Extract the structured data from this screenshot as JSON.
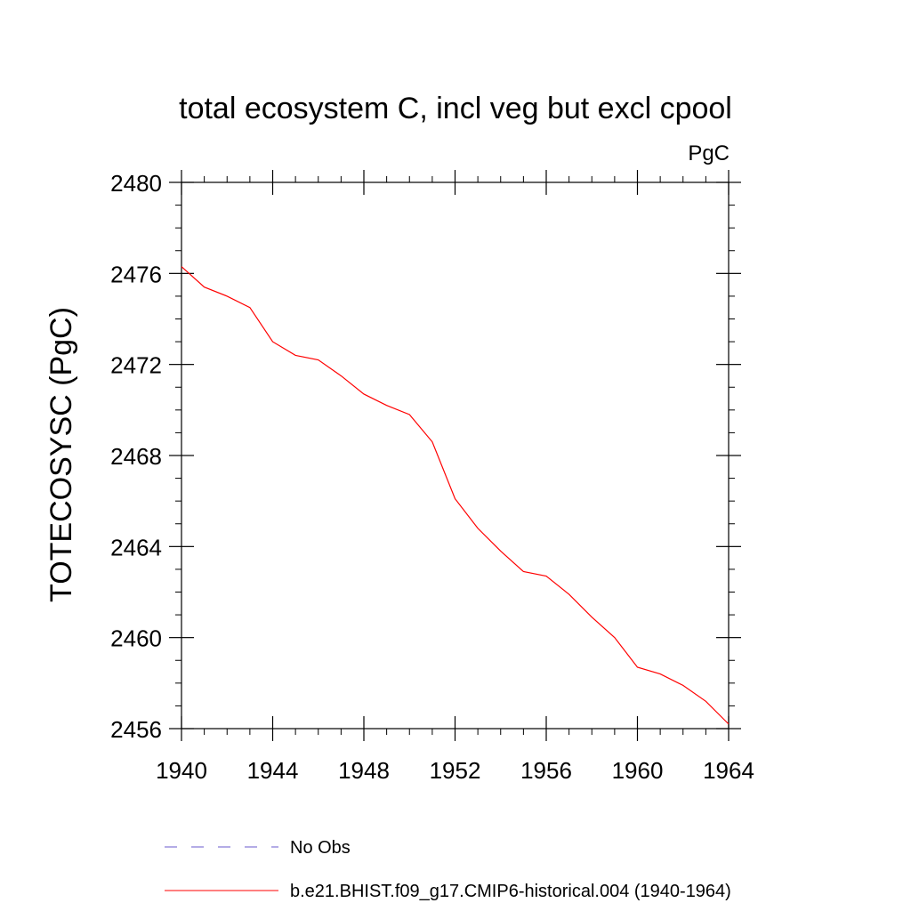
{
  "chart_data": {
    "type": "line",
    "title": "total ecosystem C, incl veg but excl cpool",
    "units_label": "PgC",
    "ylabel": "TOTECOSYSC  (PgC)",
    "xlabel": "",
    "xlim": [
      1940,
      1964
    ],
    "ylim": [
      2456,
      2480
    ],
    "x_ticks": [
      1940,
      1944,
      1948,
      1952,
      1956,
      1960,
      1964
    ],
    "y_ticks": [
      2456,
      2460,
      2464,
      2468,
      2472,
      2476,
      2480
    ],
    "x_tick_labels": [
      "1940",
      "1944",
      "1948",
      "1952",
      "1956",
      "1960",
      "1964"
    ],
    "y_tick_labels": [
      "2456",
      "2460",
      "2464",
      "2468",
      "2472",
      "2476",
      "2480"
    ],
    "grid": false,
    "legend_position": "bottom",
    "series": [
      {
        "name": "b.e21.BHIST.f09_g17.CMIP6-historical.004 (1940-1964)",
        "color": "#ff0000",
        "style": "solid",
        "x": [
          1940,
          1941,
          1942,
          1943,
          1944,
          1945,
          1946,
          1947,
          1948,
          1949,
          1950,
          1951,
          1952,
          1953,
          1954,
          1955,
          1956,
          1957,
          1958,
          1959,
          1960,
          1961,
          1962,
          1963,
          1964
        ],
        "y": [
          2476.3,
          2475.4,
          2475.0,
          2474.5,
          2473.0,
          2472.4,
          2472.2,
          2471.5,
          2470.7,
          2470.2,
          2469.8,
          2468.6,
          2466.1,
          2464.8,
          2463.8,
          2462.9,
          2462.7,
          2461.9,
          2460.9,
          2460.0,
          2458.7,
          2458.4,
          2457.9,
          2457.2,
          2456.2
        ]
      }
    ],
    "legend": [
      {
        "label": "No Obs",
        "color": "#6a5acd",
        "style": "dashed"
      },
      {
        "label": "b.e21.BHIST.f09_g17.CMIP6-historical.004 (1940-1964)",
        "color": "#ff0000",
        "style": "solid"
      }
    ]
  }
}
